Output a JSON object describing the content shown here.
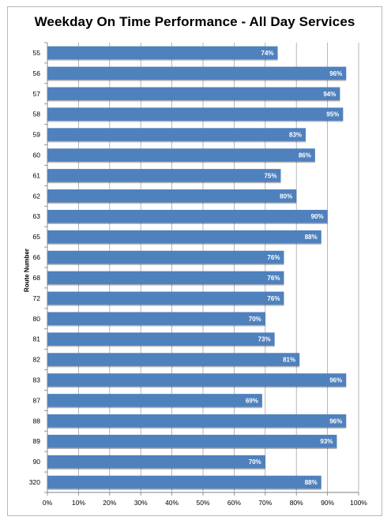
{
  "chart_data": {
    "type": "bar",
    "orientation": "horizontal",
    "title": "Weekday On Time Performance - All Day Services",
    "ylabel": "Route Number",
    "xlabel": "",
    "xlim": [
      0,
      100
    ],
    "x_ticks": [
      "0%",
      "10%",
      "20%",
      "30%",
      "40%",
      "50%",
      "60%",
      "70%",
      "80%",
      "90%",
      "100%"
    ],
    "grid": true,
    "bar_color": "#4f81bd",
    "categories": [
      "55",
      "56",
      "57",
      "58",
      "59",
      "60",
      "61",
      "62",
      "63",
      "65",
      "66",
      "68",
      "72",
      "80",
      "81",
      "82",
      "83",
      "87",
      "88",
      "89",
      "90",
      "320"
    ],
    "values": [
      74,
      96,
      94,
      95,
      83,
      86,
      75,
      80,
      90,
      88,
      76,
      76,
      76,
      70,
      73,
      81,
      96,
      69,
      96,
      93,
      70,
      88
    ],
    "data_labels": [
      "74%",
      "96%",
      "94%",
      "95%",
      "83%",
      "86%",
      "75%",
      "80%",
      "90%",
      "88%",
      "76%",
      "76%",
      "76%",
      "70%",
      "73%",
      "81%",
      "96%",
      "69%",
      "96%",
      "93%",
      "70%",
      "88%"
    ]
  }
}
